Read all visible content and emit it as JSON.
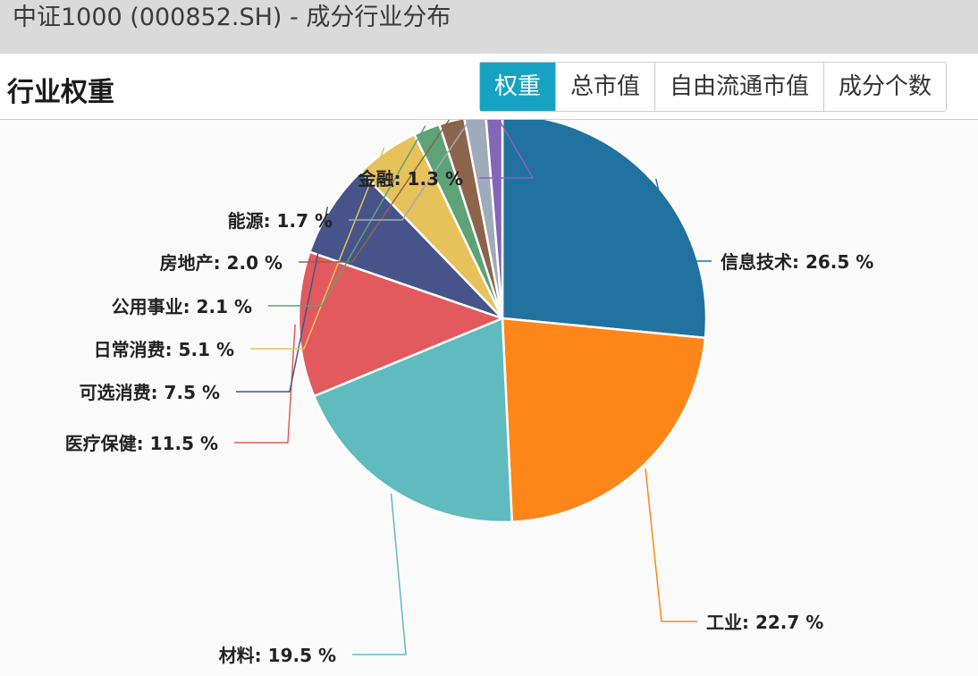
{
  "window": {
    "title": "中证1000 (000852.SH) - 成分行业分布"
  },
  "header": {
    "section_title": "行业权重",
    "tabs": [
      {
        "label": "权重",
        "active": true
      },
      {
        "label": "总市值",
        "active": false
      },
      {
        "label": "自由流通市值",
        "active": false
      },
      {
        "label": "成分个数",
        "active": false
      }
    ],
    "accent_color": "#17a2c1"
  },
  "chart_data": {
    "type": "pie",
    "title": "",
    "value_suffix": " %",
    "slices": [
      {
        "label": "信息技术",
        "value": 26.5,
        "color": "#22729f"
      },
      {
        "label": "工业",
        "value": 22.7,
        "color": "#ff8619"
      },
      {
        "label": "材料",
        "value": 19.5,
        "color": "#5fbbbe"
      },
      {
        "label": "医疗保健",
        "value": 11.5,
        "color": "#e25a5e"
      },
      {
        "label": "可选消费",
        "value": 7.5,
        "color": "#465489"
      },
      {
        "label": "日常消费",
        "value": 5.1,
        "color": "#e7c25a"
      },
      {
        "label": "公用事业",
        "value": 2.1,
        "color": "#5ea277"
      },
      {
        "label": "房地产",
        "value": 2.0,
        "color": "#8c644c"
      },
      {
        "label": "能源",
        "value": 1.7,
        "color": "#9fabba"
      },
      {
        "label": "金融",
        "value": 1.3,
        "color": "#8366b7"
      }
    ]
  }
}
